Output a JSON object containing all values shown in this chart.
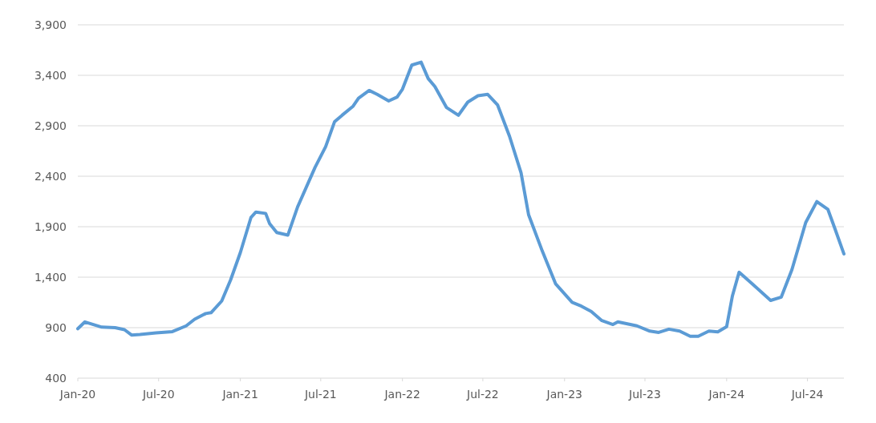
{
  "chart_data": {
    "type": "line",
    "xlim": [
      "2020-01-01",
      "2024-09-21"
    ],
    "ylim": [
      400,
      3900
    ],
    "yticks": [
      {
        "value": 400,
        "label": "400"
      },
      {
        "value": 900,
        "label": "900"
      },
      {
        "value": 1400,
        "label": "1,400"
      },
      {
        "value": 1900,
        "label": "1,900"
      },
      {
        "value": 2400,
        "label": "2,400"
      },
      {
        "value": 2900,
        "label": "2,900"
      },
      {
        "value": 3400,
        "label": "3,400"
      },
      {
        "value": 3900,
        "label": "3,900"
      }
    ],
    "xticks": [
      {
        "value": "2020-01-01",
        "label": "Jan-20"
      },
      {
        "value": "2020-07-01",
        "label": "Jul-20"
      },
      {
        "value": "2021-01-01",
        "label": "Jan-21"
      },
      {
        "value": "2021-07-01",
        "label": "Jul-21"
      },
      {
        "value": "2022-01-01",
        "label": "Jan-22"
      },
      {
        "value": "2022-07-01",
        "label": "Jul-22"
      },
      {
        "value": "2023-01-01",
        "label": "Jan-23"
      },
      {
        "value": "2023-07-01",
        "label": "Jul-23"
      },
      {
        "value": "2024-01-01",
        "label": "Jan-24"
      },
      {
        "value": "2024-07-01",
        "label": "Jul-24"
      }
    ],
    "grid": "y",
    "marker": "none",
    "line_style": "solid",
    "series": [
      {
        "color": "#5b9bd5",
        "x": [
          "2020-01-01",
          "2020-01-17",
          "2020-02-24",
          "2020-03-25",
          "2020-04-15",
          "2020-05-01",
          "2020-05-20",
          "2020-06-25",
          "2020-08-01",
          "2020-09-01",
          "2020-09-20",
          "2020-10-15",
          "2020-10-27",
          "2020-11-20",
          "2020-12-10",
          "2021-01-01",
          "2021-01-25",
          "2021-02-05",
          "2021-02-27",
          "2021-03-08",
          "2021-03-24",
          "2021-04-18",
          "2021-05-10",
          "2021-06-18",
          "2021-07-12",
          "2021-08-01",
          "2021-08-18",
          "2021-09-12",
          "2021-09-24",
          "2021-10-18",
          "2021-11-05",
          "2021-12-01",
          "2021-12-20",
          "2022-01-01",
          "2022-01-22",
          "2022-02-12",
          "2022-02-28",
          "2022-03-15",
          "2022-04-10",
          "2022-05-07",
          "2022-05-28",
          "2022-06-20",
          "2022-07-12",
          "2022-08-03",
          "2022-08-30",
          "2022-09-25",
          "2022-10-12",
          "2022-11-12",
          "2022-12-12",
          "2023-01-18",
          "2023-02-08",
          "2023-03-02",
          "2023-03-26",
          "2023-04-20",
          "2023-05-01",
          "2023-06-13",
          "2023-07-12",
          "2023-08-01",
          "2023-08-24",
          "2023-09-17",
          "2023-10-11",
          "2023-10-29",
          "2023-11-22",
          "2023-12-12",
          "2024-01-01",
          "2024-01-14",
          "2024-01-29",
          "2024-02-28",
          "2024-04-09",
          "2024-05-03",
          "2024-05-27",
          "2024-06-27",
          "2024-07-22",
          "2024-08-16",
          "2024-08-31",
          "2024-09-21"
        ],
        "values": [
          890,
          957,
          905,
          900,
          880,
          827,
          833,
          848,
          861,
          918,
          983,
          1040,
          1048,
          1164,
          1372,
          1644,
          1993,
          2045,
          2032,
          1929,
          1843,
          1817,
          2097,
          2486,
          2693,
          2939,
          3004,
          3095,
          3172,
          3250,
          3211,
          3146,
          3185,
          3263,
          3501,
          3530,
          3367,
          3289,
          3082,
          3004,
          3134,
          3198,
          3211,
          3108,
          2797,
          2434,
          2019,
          1657,
          1333,
          1151,
          1113,
          1061,
          970,
          931,
          957,
          918,
          866,
          853,
          885,
          866,
          815,
          815,
          866,
          859,
          910,
          1216,
          1449,
          1333,
          1170,
          1203,
          1475,
          1942,
          2149,
          2071,
          1890,
          1631
        ]
      }
    ]
  }
}
